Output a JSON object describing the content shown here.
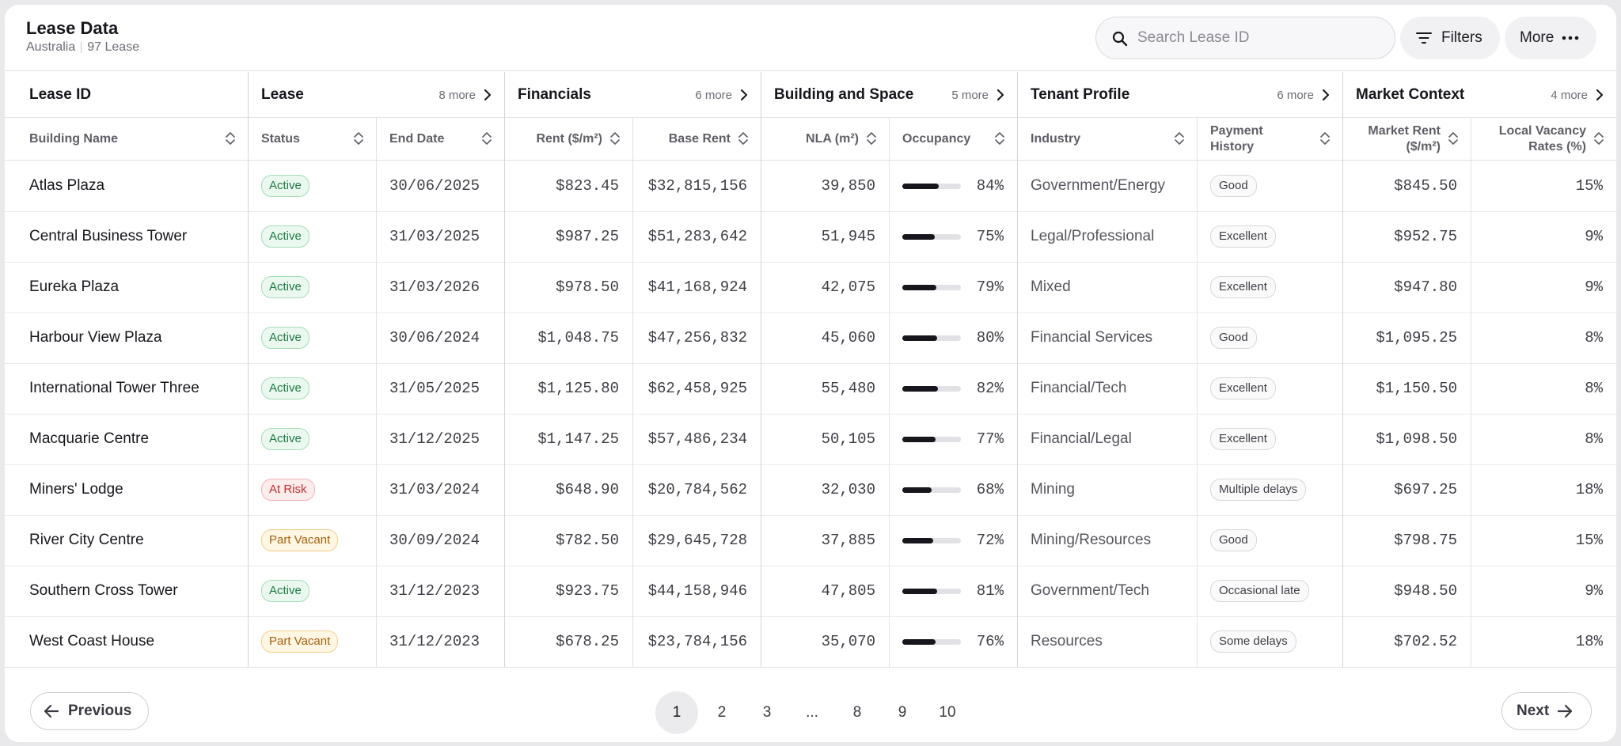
{
  "header": {
    "title": "Lease Data",
    "region": "Australia",
    "count": "97 Lease",
    "search_placeholder": "Search Lease ID",
    "filters_label": "Filters",
    "more_label": "More"
  },
  "groups": [
    {
      "label": "Lease ID",
      "more": ""
    },
    {
      "label": "Lease",
      "more": "8 more"
    },
    {
      "label": "Financials",
      "more": "6 more"
    },
    {
      "label": "Building and Space",
      "more": "5 more"
    },
    {
      "label": "Tenant Profile",
      "more": "6 more"
    },
    {
      "label": "Market Context",
      "more": "4 more"
    }
  ],
  "columns": [
    {
      "key": "building",
      "label": "Building Name"
    },
    {
      "key": "status",
      "label": "Status"
    },
    {
      "key": "end_date",
      "label": "End Date"
    },
    {
      "key": "rent",
      "label": "Rent ($/m²)"
    },
    {
      "key": "base_rent",
      "label": "Base Rent"
    },
    {
      "key": "nla",
      "label": "NLA (m²)"
    },
    {
      "key": "occupancy",
      "label": "Occupancy"
    },
    {
      "key": "industry",
      "label": "Industry"
    },
    {
      "key": "payment",
      "label": "Payment History"
    },
    {
      "key": "market_rent",
      "label": "Market Rent ($/m²)"
    },
    {
      "key": "vacancy",
      "label": "Local Vacancy Rates (%)"
    }
  ],
  "rows": [
    {
      "building": "Atlas Plaza",
      "status": "Active",
      "end_date": "30/06/2025",
      "rent": "$823.45",
      "base_rent": "$32,815,156",
      "nla": "39,850",
      "occupancy": "84%",
      "occupancy_value": 84,
      "industry": "Government/Energy",
      "payment": "Good",
      "market_rent": "$845.50",
      "vacancy": "15%"
    },
    {
      "building": "Central Business Tower",
      "status": "Active",
      "end_date": "31/03/2025",
      "rent": "$987.25",
      "base_rent": "$51,283,642",
      "nla": "51,945",
      "occupancy": "75%",
      "occupancy_value": 75,
      "industry": "Legal/Professional",
      "payment": "Excellent",
      "market_rent": "$952.75",
      "vacancy": "9%"
    },
    {
      "building": "Eureka Plaza",
      "status": "Active",
      "end_date": "31/03/2026",
      "rent": "$978.50",
      "base_rent": "$41,168,924",
      "nla": "42,075",
      "occupancy": "79%",
      "occupancy_value": 79,
      "industry": "Mixed",
      "payment": "Excellent",
      "market_rent": "$947.80",
      "vacancy": "9%"
    },
    {
      "building": "Harbour View Plaza",
      "status": "Active",
      "end_date": "30/06/2024",
      "rent": "$1,048.75",
      "base_rent": "$47,256,832",
      "nla": "45,060",
      "occupancy": "80%",
      "occupancy_value": 80,
      "industry": "Financial Services",
      "payment": "Good",
      "market_rent": "$1,095.25",
      "vacancy": "8%"
    },
    {
      "building": "International Tower Three",
      "status": "Active",
      "end_date": "31/05/2025",
      "rent": "$1,125.80",
      "base_rent": "$62,458,925",
      "nla": "55,480",
      "occupancy": "82%",
      "occupancy_value": 82,
      "industry": "Financial/Tech",
      "payment": "Excellent",
      "market_rent": "$1,150.50",
      "vacancy": "8%"
    },
    {
      "building": "Macquarie Centre",
      "status": "Active",
      "end_date": "31/12/2025",
      "rent": "$1,147.25",
      "base_rent": "$57,486,234",
      "nla": "50,105",
      "occupancy": "77%",
      "occupancy_value": 77,
      "industry": "Financial/Legal",
      "payment": "Excellent",
      "market_rent": "$1,098.50",
      "vacancy": "8%"
    },
    {
      "building": "Miners' Lodge",
      "status": "At Risk",
      "end_date": "31/03/2024",
      "rent": "$648.90",
      "base_rent": "$20,784,562",
      "nla": "32,030",
      "occupancy": "68%",
      "occupancy_value": 68,
      "industry": "Mining",
      "payment": "Multiple delays",
      "market_rent": "$697.25",
      "vacancy": "18%"
    },
    {
      "building": "River City Centre",
      "status": "Part Vacant",
      "end_date": "30/09/2024",
      "rent": "$782.50",
      "base_rent": "$29,645,728",
      "nla": "37,885",
      "occupancy": "72%",
      "occupancy_value": 72,
      "industry": "Mining/Resources",
      "payment": "Good",
      "market_rent": "$798.75",
      "vacancy": "15%"
    },
    {
      "building": "Southern Cross Tower",
      "status": "Active",
      "end_date": "31/12/2023",
      "rent": "$923.75",
      "base_rent": "$44,158,946",
      "nla": "47,805",
      "occupancy": "81%",
      "occupancy_value": 81,
      "industry": "Government/Tech",
      "payment": "Occasional late",
      "market_rent": "$948.50",
      "vacancy": "9%"
    },
    {
      "building": "West Coast House",
      "status": "Part Vacant",
      "end_date": "31/12/2023",
      "rent": "$678.25",
      "base_rent": "$23,784,156",
      "nla": "35,070",
      "occupancy": "76%",
      "occupancy_value": 76,
      "industry": "Resources",
      "payment": "Some delays",
      "market_rent": "$702.52",
      "vacancy": "18%"
    }
  ],
  "status_colors": {
    "Active": "#1d7a43",
    "At Risk": "#c03232",
    "Part Vacant": "#a35f0d"
  },
  "pagination": {
    "previous_label": "Previous",
    "next_label": "Next",
    "pages": [
      "1",
      "2",
      "3",
      "...",
      "8",
      "9",
      "10"
    ],
    "current": "1"
  }
}
